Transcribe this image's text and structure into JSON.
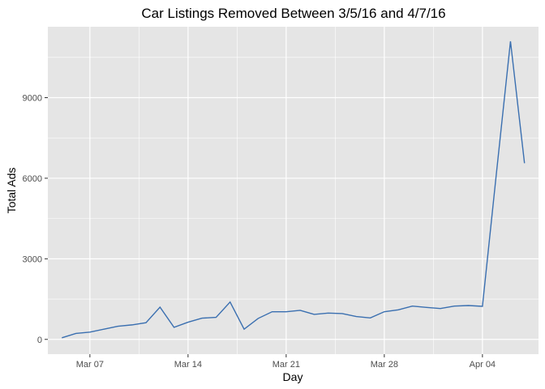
{
  "chart_data": {
    "type": "line",
    "title": "Car Listings Removed Between 3/5/16 and 4/7/16",
    "xlabel": "Day",
    "ylabel": "Total Ads",
    "x_ticks": [
      {
        "date": "2016-03-07",
        "label": "Mar 07"
      },
      {
        "date": "2016-03-14",
        "label": "Mar 14"
      },
      {
        "date": "2016-03-21",
        "label": "Mar 21"
      },
      {
        "date": "2016-03-28",
        "label": "Mar 28"
      },
      {
        "date": "2016-04-04",
        "label": "Apr 04"
      }
    ],
    "y_ticks": [
      0,
      3000,
      6000,
      9000
    ],
    "xlim": [
      "2016-03-04",
      "2016-04-08"
    ],
    "ylim": [
      -550,
      11640
    ],
    "grid": true,
    "colors": {
      "line": "#3a6fb0",
      "panel": "#e5e5e5",
      "grid": "#ffffff"
    },
    "series": [
      {
        "x": [
          "2016-03-05",
          "2016-03-06",
          "2016-03-07",
          "2016-03-08",
          "2016-03-09",
          "2016-03-10",
          "2016-03-11",
          "2016-03-12",
          "2016-03-13",
          "2016-03-14",
          "2016-03-15",
          "2016-03-16",
          "2016-03-17",
          "2016-03-18",
          "2016-03-19",
          "2016-03-20",
          "2016-03-21",
          "2016-03-22",
          "2016-03-23",
          "2016-03-24",
          "2016-03-25",
          "2016-03-26",
          "2016-03-27",
          "2016-03-28",
          "2016-03-29",
          "2016-03-30",
          "2016-03-31",
          "2016-04-01",
          "2016-04-02",
          "2016-04-03",
          "2016-04-04",
          "2016-04-05",
          "2016-04-06",
          "2016-04-07"
        ],
        "values": [
          60,
          220,
          270,
          380,
          490,
          540,
          620,
          1200,
          450,
          640,
          790,
          820,
          1390,
          380,
          780,
          1030,
          1030,
          1080,
          930,
          980,
          960,
          850,
          800,
          1030,
          1100,
          1240,
          1190,
          1150,
          1240,
          1260,
          1230,
          6200,
          11100,
          6560
        ]
      }
    ]
  }
}
